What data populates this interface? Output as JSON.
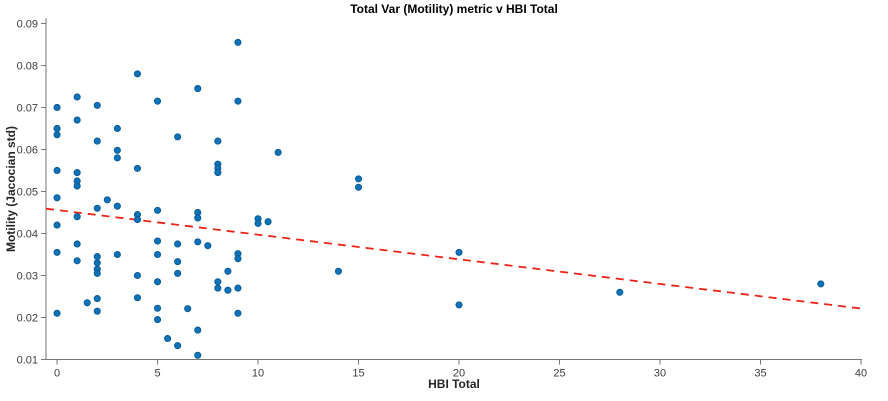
{
  "chart_data": {
    "type": "scatter",
    "title": "Total Var (Motility) metric v HBI Total",
    "xlabel": "HBI Total",
    "ylabel": "Motility (Jacocian std)",
    "xlim": [
      -0.55,
      40.05
    ],
    "ylim": [
      0.01,
      0.0913
    ],
    "xticks": [
      0,
      5,
      10,
      15,
      20,
      25,
      30,
      35,
      40
    ],
    "yticks": [
      0.01,
      0.02,
      0.03,
      0.04,
      0.05,
      0.06,
      0.07,
      0.08,
      0.09
    ],
    "grid": false,
    "legend": null,
    "colors": {
      "point_fill": "#0E72B8",
      "point_edge": "#085A93",
      "trend_line": "#EC2318",
      "axis_line": "#757575",
      "tick_text": "#3d3d3d"
    },
    "trend": {
      "style": "dashed",
      "x1": -0.55,
      "y1": 0.0459,
      "x2": 40.05,
      "y2": 0.0221
    },
    "points": [
      [
        0,
        0.07
      ],
      [
        0,
        0.065
      ],
      [
        0,
        0.0635
      ],
      [
        0,
        0.055
      ],
      [
        0,
        0.0485
      ],
      [
        0,
        0.042
      ],
      [
        0,
        0.0355
      ],
      [
        0,
        0.021
      ],
      [
        1,
        0.0725
      ],
      [
        1,
        0.067
      ],
      [
        1,
        0.0545
      ],
      [
        1,
        0.0525
      ],
      [
        1,
        0.0513
      ],
      [
        1,
        0.044
      ],
      [
        1,
        0.0375
      ],
      [
        1,
        0.0335
      ],
      [
        1.5,
        0.0235
      ],
      [
        2,
        0.0705
      ],
      [
        2,
        0.062
      ],
      [
        2,
        0.046
      ],
      [
        2,
        0.0345
      ],
      [
        2,
        0.033
      ],
      [
        2,
        0.0315
      ],
      [
        2,
        0.0305
      ],
      [
        2,
        0.0245
      ],
      [
        2,
        0.0215
      ],
      [
        2.5,
        0.048
      ],
      [
        3,
        0.065
      ],
      [
        3,
        0.0598
      ],
      [
        3,
        0.058
      ],
      [
        3,
        0.0465
      ],
      [
        3,
        0.035
      ],
      [
        4,
        0.078
      ],
      [
        4,
        0.0555
      ],
      [
        4,
        0.0445
      ],
      [
        4,
        0.0433
      ],
      [
        4,
        0.03
      ],
      [
        4,
        0.0247
      ],
      [
        5,
        0.0715
      ],
      [
        5,
        0.0455
      ],
      [
        5,
        0.0382
      ],
      [
        5,
        0.035
      ],
      [
        5,
        0.0285
      ],
      [
        5,
        0.0222
      ],
      [
        5,
        0.0195
      ],
      [
        5.5,
        0.015
      ],
      [
        6,
        0.063
      ],
      [
        6,
        0.0375
      ],
      [
        6,
        0.0333
      ],
      [
        6,
        0.0305
      ],
      [
        6,
        0.0133
      ],
      [
        6.5,
        0.0221
      ],
      [
        7,
        0.0745
      ],
      [
        7,
        0.045
      ],
      [
        7,
        0.0437
      ],
      [
        7,
        0.038
      ],
      [
        7,
        0.017
      ],
      [
        7,
        0.011
      ],
      [
        7.5,
        0.0371
      ],
      [
        8,
        0.062
      ],
      [
        8,
        0.0565
      ],
      [
        8,
        0.0555
      ],
      [
        8,
        0.0545
      ],
      [
        8,
        0.0285
      ],
      [
        8,
        0.027
      ],
      [
        8.5,
        0.031
      ],
      [
        8.5,
        0.0265
      ],
      [
        9,
        0.0855
      ],
      [
        9,
        0.0715
      ],
      [
        9,
        0.0352
      ],
      [
        9,
        0.034
      ],
      [
        9,
        0.027
      ],
      [
        9,
        0.021
      ],
      [
        10,
        0.0435
      ],
      [
        10,
        0.0424
      ],
      [
        10.5,
        0.0428
      ],
      [
        11,
        0.0593
      ],
      [
        14,
        0.031
      ],
      [
        15,
        0.053
      ],
      [
        15,
        0.051
      ],
      [
        20,
        0.0355
      ],
      [
        20,
        0.023
      ],
      [
        28,
        0.026
      ],
      [
        38,
        0.028
      ]
    ]
  }
}
